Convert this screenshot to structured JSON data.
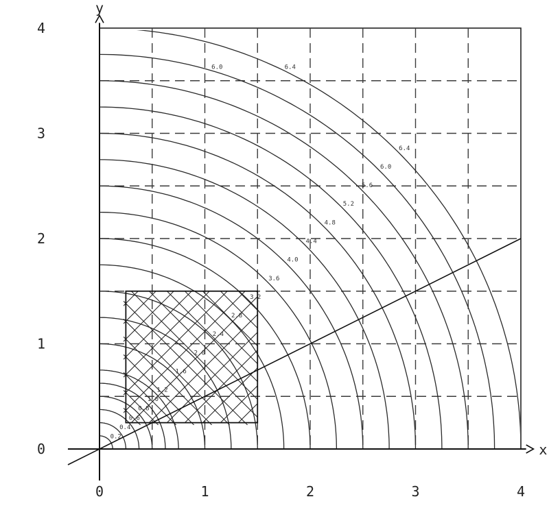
{
  "chart_data": {
    "type": "contour",
    "title": "",
    "xlabel": "x",
    "ylabel": "y",
    "xlim": [
      0,
      4
    ],
    "ylim": [
      0,
      4
    ],
    "x_ticks": [
      "0",
      "1",
      "2",
      "3",
      "4"
    ],
    "y_ticks": [
      "0",
      "1",
      "2",
      "3",
      "4"
    ],
    "grid": "dashed, step 0.5",
    "contour_levels": [
      0.2,
      0.4,
      0.6,
      0.8,
      1.0,
      1.2,
      1.6,
      2.0,
      2.4,
      2.8,
      3.2,
      3.6,
      4.0,
      4.4,
      4.8,
      5.2,
      5.6,
      6.0,
      6.4
    ],
    "contour_labels": [
      "0.2",
      "0.4",
      "0.6",
      "0.8",
      "1.0",
      "1.2",
      "1.6",
      "2.0",
      "2.4",
      "2.8",
      "3.2",
      "3.6",
      "4.0",
      "4.4",
      "4.8",
      "5.2",
      "5.6",
      "6.0",
      "6.4"
    ],
    "hatched_region": {
      "x": [
        0.25,
        1.5
      ],
      "y": [
        0.25,
        1.5
      ]
    },
    "diagonal_line": {
      "from": [
        -0.3,
        -0.15
      ],
      "to": [
        4,
        2
      ]
    }
  }
}
